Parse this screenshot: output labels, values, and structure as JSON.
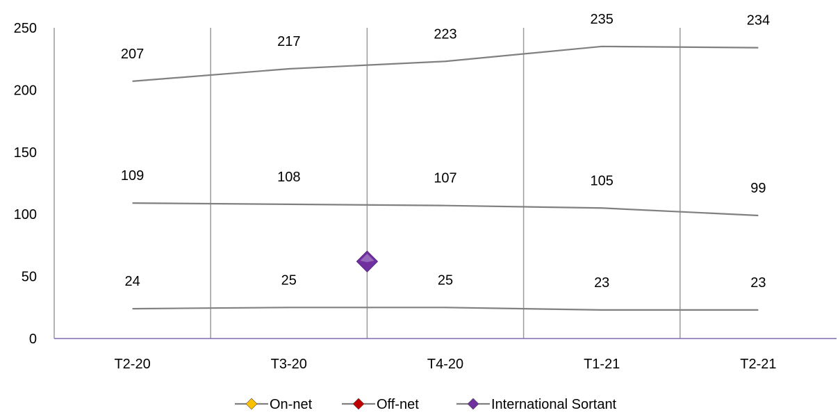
{
  "chart_data": {
    "type": "line",
    "title": "",
    "xlabel": "",
    "ylabel": "",
    "categories": [
      "T2-20",
      "T3-20",
      "T4-20",
      "T1-21",
      "T2-21"
    ],
    "ylim": [
      0,
      250
    ],
    "yticks": [
      0,
      50,
      100,
      150,
      200,
      250
    ],
    "grid": "vertical",
    "legend": "bottom",
    "series": [
      {
        "name": "On-net",
        "values": [
          207,
          217,
          223,
          235,
          234
        ],
        "labels": [
          "207",
          "217",
          "223",
          "235",
          "234"
        ],
        "line_color": "#808080",
        "marker_color": "#FFC000"
      },
      {
        "name": "Off-net",
        "values": [
          109,
          108,
          107,
          105,
          99
        ],
        "labels": [
          "109",
          "108",
          "107",
          "105",
          "99"
        ],
        "line_color": "#808080",
        "marker_color": "#C00000"
      },
      {
        "name": "International Sortant",
        "values": [
          24,
          25,
          25,
          23,
          23
        ],
        "labels": [
          "24",
          "25",
          "25",
          "23",
          "23"
        ],
        "line_color": "#808080",
        "marker_color": "#7030A0"
      }
    ],
    "annotations": [
      {
        "shape": "diamond",
        "color": "#7030A0",
        "x_between": [
          "T3-20",
          "T4-20"
        ],
        "y": 62
      }
    ]
  }
}
